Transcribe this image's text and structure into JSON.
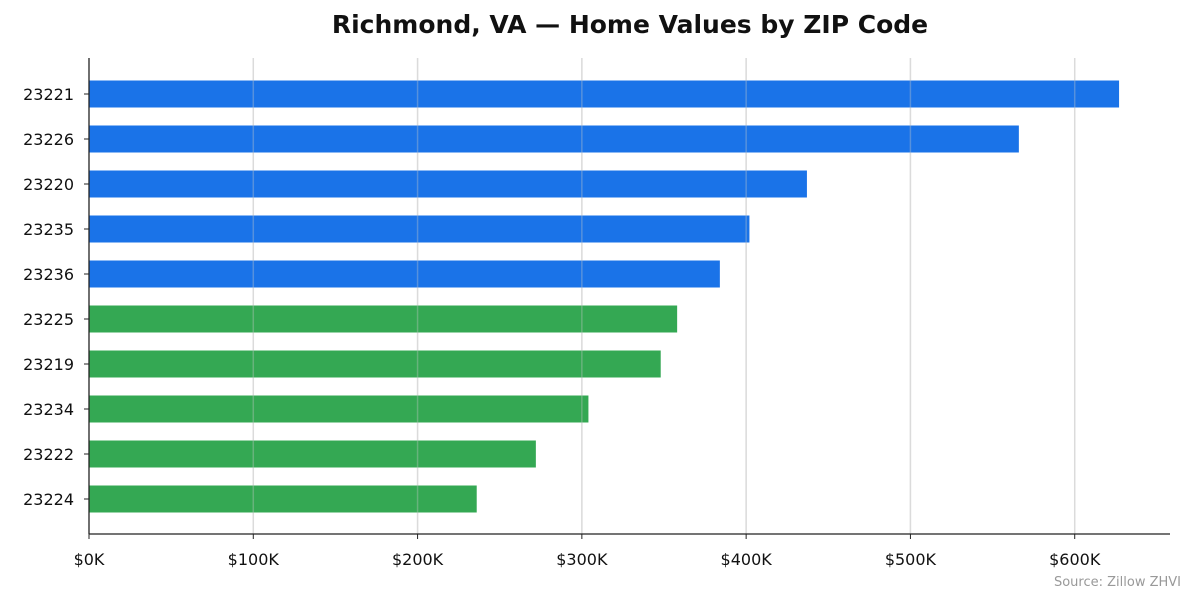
{
  "chart_data": {
    "type": "bar",
    "orientation": "horizontal",
    "title": "Richmond, VA — Home Values by ZIP Code",
    "xlabel": "",
    "ylabel": "",
    "categories": [
      "23221",
      "23226",
      "23220",
      "23235",
      "23236",
      "23225",
      "23219",
      "23234",
      "23222",
      "23224"
    ],
    "values": [
      627000,
      566000,
      437000,
      402000,
      384000,
      358000,
      348000,
      304000,
      272000,
      236000
    ],
    "bar_colors": [
      "#1a73e8",
      "#1a73e8",
      "#1a73e8",
      "#1a73e8",
      "#1a73e8",
      "#34a853",
      "#34a853",
      "#34a853",
      "#34a853",
      "#34a853"
    ],
    "xlim": [
      0,
      658000
    ],
    "xticks": [
      0,
      100000,
      200000,
      300000,
      400000,
      500000,
      600000
    ],
    "xtick_labels": [
      "$0K",
      "$100K",
      "$200K",
      "$300K",
      "$400K",
      "$500K",
      "$600K"
    ],
    "grid": "vertical",
    "source": "Source: Zillow ZHVI"
  }
}
